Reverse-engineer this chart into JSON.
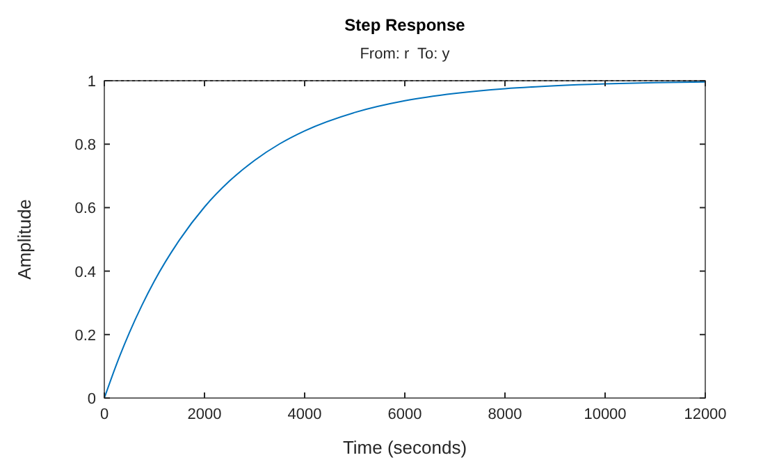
{
  "chart_data": {
    "type": "line",
    "title": "Step Response",
    "subtitle": "From: r  To: y",
    "xlabel": "Time (seconds)",
    "ylabel": "Amplitude",
    "x": [
      0,
      250,
      500,
      750,
      1000,
      1500,
      2000,
      2500,
      3000,
      3500,
      4000,
      5000,
      6000,
      7000,
      8000,
      9000,
      10000,
      11000,
      12000
    ],
    "series": [
      {
        "color": "#0072bd",
        "values": [
          0,
          0.109,
          0.206,
          0.292,
          0.369,
          0.498,
          0.602,
          0.684,
          0.749,
          0.801,
          0.842,
          0.9,
          0.937,
          0.96,
          0.975,
          0.984,
          0.99,
          0.994,
          0.996
        ]
      }
    ],
    "xlim": [
      0,
      12000
    ],
    "xticks": [
      0,
      2000,
      4000,
      6000,
      8000,
      10000,
      12000
    ],
    "ylim": [
      0,
      1
    ],
    "yticks": [
      0,
      0.2,
      0.4,
      0.6,
      0.8,
      1
    ],
    "ref_lines": [
      {
        "axis": "y",
        "value": 1,
        "color": "#000000",
        "line_style": "dotted"
      }
    ],
    "grid": false,
    "line_style": "solid",
    "marker": "none"
  }
}
